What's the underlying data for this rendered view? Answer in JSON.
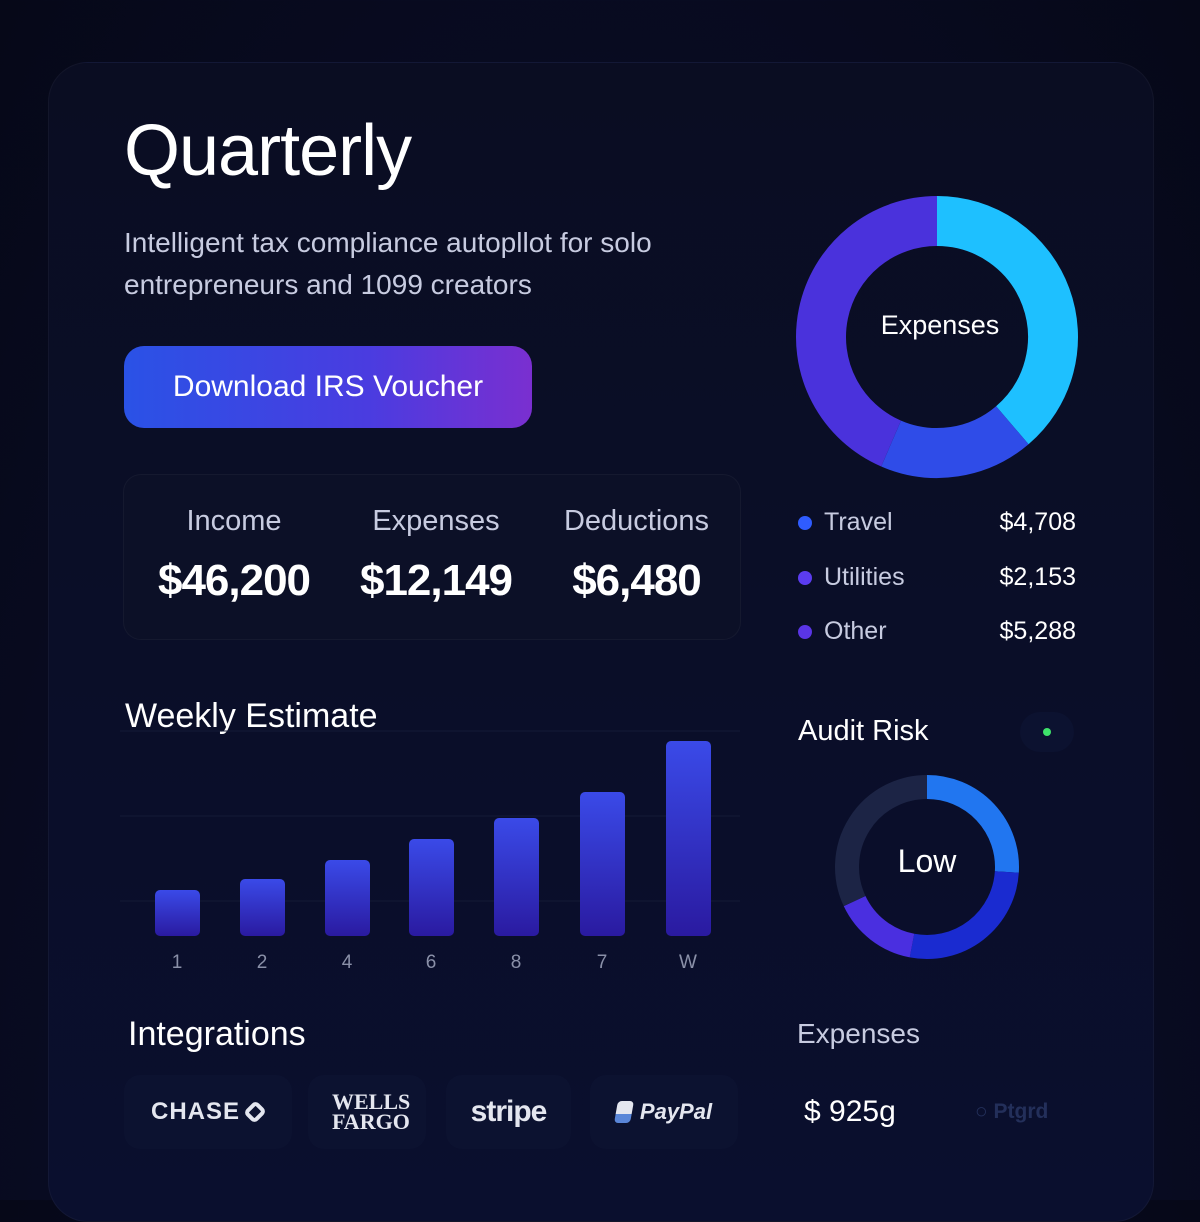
{
  "header": {
    "title": "Quarterly",
    "subtitle": "Intelligent tax compliance autopllot for solo entrepreneurs and 1099 creators",
    "cta_label": "Download IRS Voucher"
  },
  "summary": [
    {
      "label": "Income",
      "value": "$46,200"
    },
    {
      "label": "Expenses",
      "value": "$12,149"
    },
    {
      "label": "Deductions",
      "value": "$6,480"
    }
  ],
  "expenses_donut": {
    "center_label": "Expenses",
    "items": [
      {
        "name": "Travel",
        "value": "$4,708",
        "amount": 4708,
        "color": "#2f5cff"
      },
      {
        "name": "Utilities",
        "value": "$2,153",
        "amount": 2153,
        "color": "#5b3cf0"
      },
      {
        "name": "Other",
        "value": "$5,288",
        "amount": 5288,
        "color": "#5a35e6"
      }
    ],
    "segment_colors": [
      "#1ec0ff",
      "#2f4ce8",
      "#4a32dc"
    ]
  },
  "weekly": {
    "title": "Weekly Estimate"
  },
  "chart_data": {
    "type": "bar",
    "categories": [
      "1",
      "2",
      "4",
      "6",
      "8",
      "7",
      "W"
    ],
    "values": [
      46,
      57,
      76,
      97,
      118,
      144,
      195
    ],
    "title": "Weekly Estimate",
    "xlabel": "",
    "ylabel": "",
    "grid": true
  },
  "audit": {
    "title": "Audit Risk",
    "level": "Low",
    "status_color": "#3ee26a",
    "segments": [
      {
        "fraction": 0.26,
        "color": "#2176f0"
      },
      {
        "fraction": 0.27,
        "color": "#1a2bd0"
      },
      {
        "fraction": 0.15,
        "color": "#4a2fe0"
      },
      {
        "fraction": 0.32,
        "color": "#1c2445"
      }
    ]
  },
  "integrations": {
    "title": "Integrations",
    "items": [
      "CHASE",
      "WELLS FARGO",
      "stripe",
      "PayPal"
    ]
  },
  "expenses_footer": {
    "label": "Expenses",
    "value": "$ 925g",
    "faded_text": "Ptgrd"
  }
}
